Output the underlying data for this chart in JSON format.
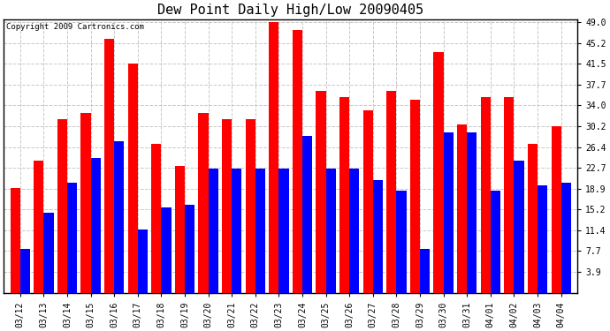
{
  "title": "Dew Point Daily High/Low 20090405",
  "copyright": "Copyright 2009 Cartronics.com",
  "dates": [
    "03/12",
    "03/13",
    "03/14",
    "03/15",
    "03/16",
    "03/17",
    "03/18",
    "03/19",
    "03/20",
    "03/21",
    "03/22",
    "03/23",
    "03/24",
    "03/25",
    "03/26",
    "03/27",
    "03/28",
    "03/29",
    "03/30",
    "03/31",
    "04/01",
    "04/02",
    "04/03",
    "04/04"
  ],
  "high_values": [
    19.0,
    24.0,
    31.5,
    32.5,
    46.0,
    41.5,
    27.0,
    23.0,
    32.5,
    31.5,
    31.5,
    49.0,
    47.5,
    36.5,
    35.5,
    33.0,
    36.5,
    35.0,
    43.5,
    30.5,
    35.5,
    35.5,
    27.0,
    30.2
  ],
  "low_values": [
    8.0,
    14.5,
    20.0,
    24.5,
    27.5,
    11.5,
    15.5,
    16.0,
    22.5,
    22.5,
    22.5,
    22.5,
    28.5,
    22.5,
    22.5,
    20.5,
    18.5,
    8.0,
    29.0,
    29.0,
    18.5,
    24.0,
    19.5,
    20.0
  ],
  "high_color": "#ff0000",
  "low_color": "#0000ff",
  "bg_color": "#ffffff",
  "plot_bg_color": "#ffffff",
  "grid_color": "#c8c8c8",
  "yticks": [
    3.9,
    7.7,
    11.4,
    15.2,
    18.9,
    22.7,
    26.4,
    30.2,
    34.0,
    37.7,
    41.5,
    45.2,
    49.0
  ],
  "ymin": 3.9,
  "ymax": 49.0,
  "bar_width": 0.42,
  "title_fontsize": 11,
  "tick_fontsize": 7,
  "copyright_fontsize": 6.5
}
